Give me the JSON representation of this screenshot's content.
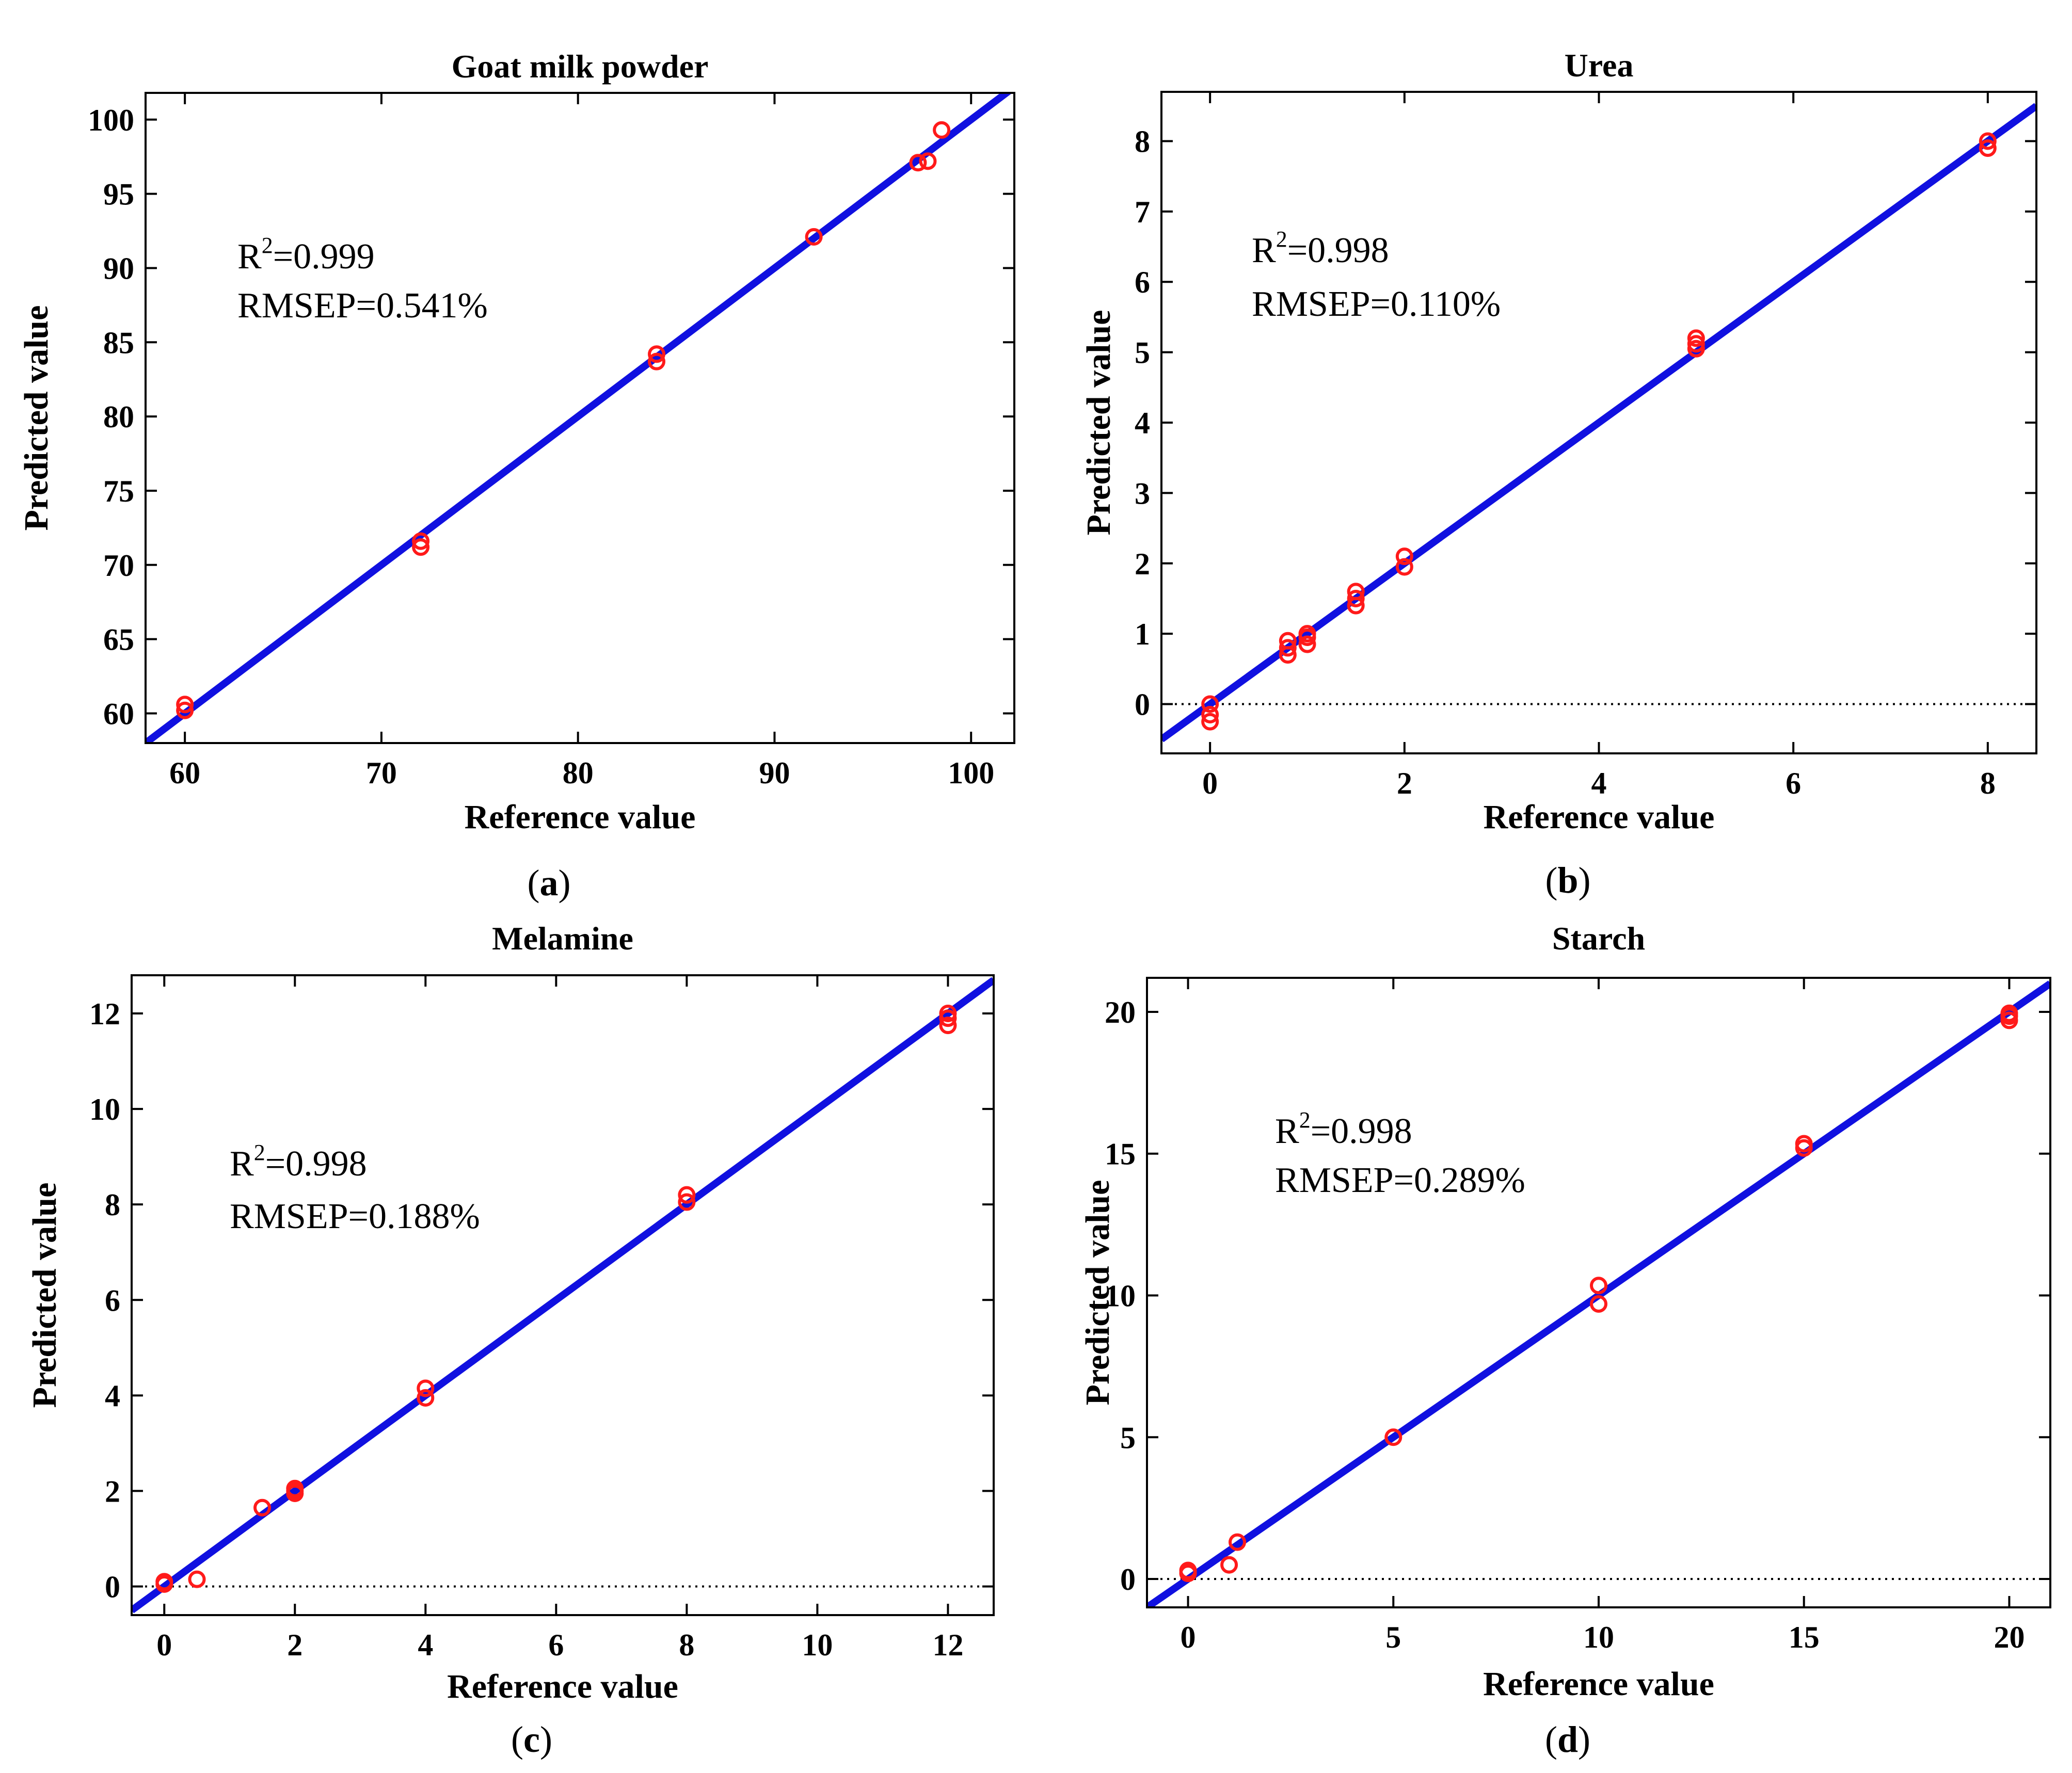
{
  "colors": {
    "fit_line": "#1010e0",
    "markers": "#ff1a1a",
    "axes": "#000000",
    "zero_line": "#000000"
  },
  "chart_data": [
    {
      "id": "a",
      "type": "scatter",
      "title": "Goat milk powder",
      "xlabel": "Reference value",
      "ylabel": "Predicted value",
      "caption": "(a)",
      "caption_letter": "a",
      "xlim": [
        58,
        102.2
      ],
      "ylim": [
        58,
        101.8
      ],
      "xticks": [
        60,
        70,
        80,
        90,
        100
      ],
      "yticks": [
        60,
        65,
        70,
        75,
        80,
        85,
        90,
        95,
        100
      ],
      "zero_line": false,
      "fit_line": {
        "slope": 1.0,
        "intercept": 0.0
      },
      "annotation": {
        "r2_prefix": "R",
        "r2_sup": "2",
        "r2_value": "=0.999",
        "rmsep": "RMSEP=0.541%"
      },
      "points": [
        [
          60,
          60.2
        ],
        [
          60,
          60.6
        ],
        [
          72,
          71.2
        ],
        [
          72,
          71.6
        ],
        [
          84,
          83.7
        ],
        [
          84,
          84.2
        ],
        [
          92,
          92.1
        ],
        [
          97.3,
          97.1
        ],
        [
          97.8,
          97.2
        ],
        [
          98.5,
          99.3
        ]
      ]
    },
    {
      "id": "b",
      "type": "scatter",
      "title": "Urea",
      "xlabel": "Reference value",
      "ylabel": "Predicted value",
      "caption": "(b)",
      "caption_letter": "b",
      "xlim": [
        -0.5,
        8.5
      ],
      "ylim": [
        -0.7,
        8.7
      ],
      "xticks": [
        0,
        2,
        4,
        6,
        8
      ],
      "yticks": [
        0,
        1,
        2,
        3,
        4,
        5,
        6,
        7,
        8
      ],
      "zero_line": true,
      "fit_line": {
        "slope": 1.0,
        "intercept": 0.0
      },
      "annotation": {
        "r2_prefix": "R",
        "r2_sup": "2",
        "r2_value": "=0.998",
        "rmsep": "RMSEP=0.110%"
      },
      "points": [
        [
          0,
          0.0
        ],
        [
          0,
          -0.15
        ],
        [
          0,
          -0.25
        ],
        [
          0.8,
          0.7
        ],
        [
          0.8,
          0.8
        ],
        [
          0.8,
          0.9
        ],
        [
          1,
          0.85
        ],
        [
          1,
          0.95
        ],
        [
          1,
          1.0
        ],
        [
          1.5,
          1.4
        ],
        [
          1.5,
          1.5
        ],
        [
          1.5,
          1.6
        ],
        [
          2,
          1.95
        ],
        [
          2,
          2.1
        ],
        [
          5,
          5.05
        ],
        [
          5,
          5.12
        ],
        [
          5,
          5.2
        ],
        [
          8,
          7.9
        ],
        [
          8,
          8.0
        ]
      ]
    },
    {
      "id": "c",
      "type": "scatter",
      "title": "Melamine",
      "xlabel": "Reference value",
      "ylabel": "Predicted value",
      "caption": "(c)",
      "caption_letter": "c",
      "xlim": [
        -0.5,
        12.7
      ],
      "ylim": [
        -0.6,
        12.8
      ],
      "xticks": [
        0,
        2,
        4,
        6,
        8,
        10,
        12
      ],
      "yticks": [
        0,
        2,
        4,
        6,
        8,
        10,
        12
      ],
      "zero_line": true,
      "fit_line": {
        "slope": 1.0,
        "intercept": 0.0
      },
      "annotation": {
        "r2_prefix": "R",
        "r2_sup": "2",
        "r2_value": "=0.998",
        "rmsep": "RMSEP=0.188%"
      },
      "points": [
        [
          0,
          0.05
        ],
        [
          0,
          0.1
        ],
        [
          0.5,
          0.15
        ],
        [
          1.5,
          1.65
        ],
        [
          2,
          1.95
        ],
        [
          2,
          2.0
        ],
        [
          2,
          2.05
        ],
        [
          4,
          3.95
        ],
        [
          4,
          4.15
        ],
        [
          8,
          8.05
        ],
        [
          8,
          8.2
        ],
        [
          12,
          11.75
        ],
        [
          12,
          11.9
        ],
        [
          12,
          12.0
        ]
      ]
    },
    {
      "id": "d",
      "type": "scatter",
      "title": "Starch",
      "xlabel": "Reference value",
      "ylabel": "Predicted value",
      "caption": "(d)",
      "caption_letter": "d",
      "xlim": [
        -1,
        21
      ],
      "ylim": [
        -1,
        21.2
      ],
      "xticks": [
        0,
        5,
        10,
        15,
        20
      ],
      "yticks": [
        0,
        5,
        10,
        15,
        20
      ],
      "zero_line": true,
      "fit_line": {
        "slope": 1.0,
        "intercept": 0.0
      },
      "annotation": {
        "r2_prefix": "R",
        "r2_sup": "2",
        "r2_value": "=0.998",
        "rmsep": "RMSEP=0.289%"
      },
      "points": [
        [
          0,
          0.2
        ],
        [
          0,
          0.3
        ],
        [
          1,
          0.5
        ],
        [
          1.2,
          1.3
        ],
        [
          5,
          5.0
        ],
        [
          10,
          9.7
        ],
        [
          10,
          10.35
        ],
        [
          15,
          15.2
        ],
        [
          15,
          15.35
        ],
        [
          20,
          19.7
        ],
        [
          20,
          19.85
        ],
        [
          20,
          19.95
        ]
      ]
    }
  ]
}
